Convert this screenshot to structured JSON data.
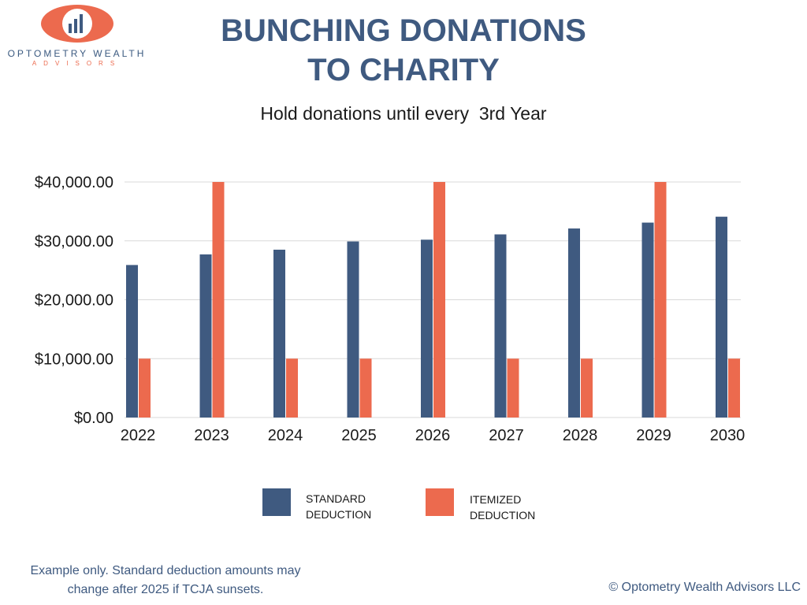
{
  "logo": {
    "name": "OPTOMETRY WEALTH",
    "sub": "ADVISORS"
  },
  "title_line1": "BUNCHING DONATIONS",
  "title_line2": "TO CHARITY",
  "subtitle": "Hold donations until every  3rd Year",
  "colors": {
    "standard": "#3f5a80",
    "itemized": "#ec6a4e",
    "grid": "#d9d9d9",
    "axis_text": "#1a1a1a",
    "brand": "#3f5a80"
  },
  "chart_data": {
    "type": "bar",
    "categories": [
      "2022",
      "2023",
      "2024",
      "2025",
      "2026",
      "2027",
      "2028",
      "2029",
      "2030"
    ],
    "series": [
      {
        "name_lines": [
          "STANDARD",
          "DEDUCTION"
        ],
        "values": [
          25900,
          27700,
          28500,
          29900,
          30200,
          31100,
          32100,
          33100,
          34100
        ]
      },
      {
        "name_lines": [
          "ITEMIZED",
          "DEDUCTION"
        ],
        "values": [
          10000,
          40000,
          10000,
          10000,
          40000,
          10000,
          10000,
          40000,
          10000
        ]
      }
    ],
    "yticks": [
      "$0.00",
      "$10,000.00",
      "$20,000.00",
      "$30,000.00",
      "$40,000.00"
    ],
    "ylim": [
      0,
      40000
    ],
    "grid": true,
    "legend": "bottom"
  },
  "footnote_line1": "Example only. Standard deduction amounts may",
  "footnote_line2": "change after 2025 if TCJA sunsets.",
  "copyright": "© Optometry Wealth Advisors LLC"
}
